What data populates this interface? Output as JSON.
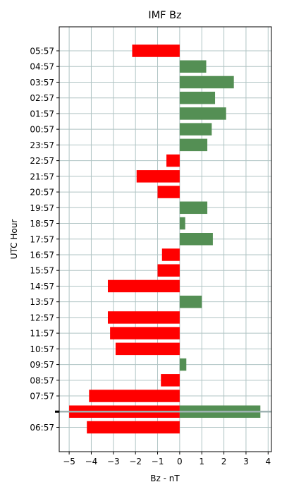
{
  "chart_data": {
    "type": "bar",
    "orientation": "horizontal",
    "title": "IMF Bz",
    "xlabel": "Bz - nT",
    "ylabel": "UTC Hour",
    "xlim": [
      -5.45,
      4.15
    ],
    "xticks": [
      -5,
      -4,
      -3,
      -2,
      -1,
      0,
      1,
      2,
      3,
      4
    ],
    "xtick_labels": [
      "−5",
      "−4",
      "−3",
      "−2",
      "−1",
      "0",
      "1",
      "2",
      "3",
      "4"
    ],
    "grid": true,
    "positive_color": "#548f54",
    "negative_color": "#ff0000",
    "separator_color": "#9fb3b3",
    "categories": [
      "06:57",
      "",
      "07:57",
      "08:57",
      "09:57",
      "10:57",
      "11:57",
      "12:57",
      "13:57",
      "14:57",
      "15:57",
      "16:57",
      "17:57",
      "18:57",
      "19:57",
      "20:57",
      "21:57",
      "22:57",
      "23:57",
      "00:57",
      "01:57",
      "02:57",
      "03:57",
      "04:57",
      "05:57"
    ],
    "values": [
      -4.2,
      -5.0,
      -4.1,
      -0.85,
      0.3,
      -2.9,
      -3.15,
      -3.25,
      1.0,
      -3.25,
      -1.0,
      -0.8,
      1.5,
      0.25,
      1.25,
      -1.0,
      -1.95,
      -0.6,
      1.25,
      1.45,
      2.1,
      1.6,
      2.45,
      1.2,
      -2.15
    ],
    "extra_bars": [
      {
        "category_index": 1,
        "value": 3.65
      }
    ]
  }
}
